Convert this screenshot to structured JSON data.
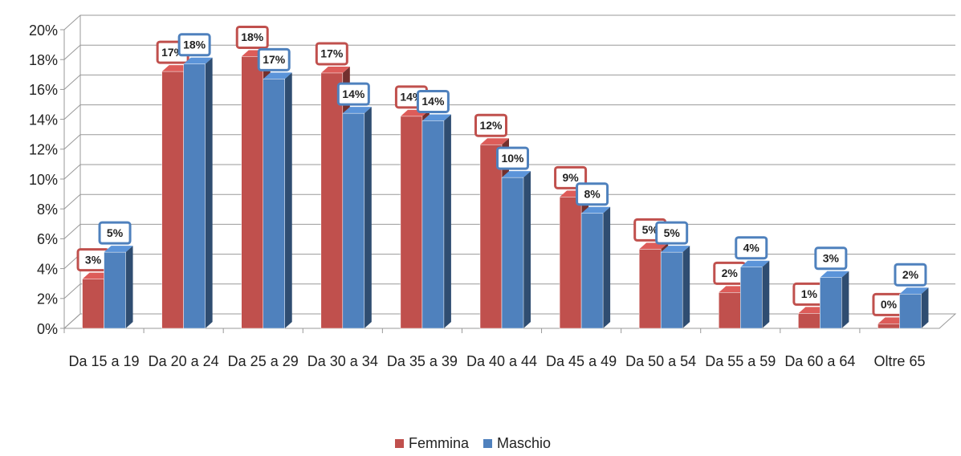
{
  "chart_data": {
    "type": "bar",
    "categories": [
      "Da 15 a 19",
      "Da 20 a 24",
      "Da 25 a 29",
      "Da 30 a 34",
      "Da 35 a 39",
      "Da 40 a 44",
      "Da 45 a 49",
      "Da 50 a 54",
      "Da 55 a 59",
      "Da 60 a 64",
      "Oltre 65"
    ],
    "series": [
      {
        "name": "Femmina",
        "color": "#c0504d",
        "values": [
          3.3,
          17.2,
          18.2,
          17.1,
          14.2,
          12.3,
          8.8,
          5.3,
          2.4,
          1.0,
          0.3
        ],
        "value_labels": [
          "3%",
          "17%",
          "18%",
          "17%",
          "14%",
          "12%",
          "9%",
          "5%",
          "2%",
          "1%",
          "0%"
        ]
      },
      {
        "name": "Maschio",
        "color": "#4f81bd",
        "values": [
          5.1,
          17.7,
          16.7,
          14.4,
          13.9,
          10.1,
          7.7,
          5.1,
          4.1,
          3.4,
          2.3
        ],
        "value_labels": [
          "5%",
          "18%",
          "17%",
          "14%",
          "14%",
          "10%",
          "8%",
          "5%",
          "4%",
          "3%",
          "2%"
        ]
      }
    ],
    "ylim": [
      0,
      20
    ],
    "yticks": [
      {
        "value": 0,
        "label": "0%"
      },
      {
        "value": 2,
        "label": "2%"
      },
      {
        "value": 4,
        "label": "4%"
      },
      {
        "value": 6,
        "label": "6%"
      },
      {
        "value": 8,
        "label": "8%"
      },
      {
        "value": 10,
        "label": "10%"
      },
      {
        "value": 12,
        "label": "12%"
      },
      {
        "value": 14,
        "label": "14%"
      },
      {
        "value": 16,
        "label": "16%"
      },
      {
        "value": 18,
        "label": "18%"
      },
      {
        "value": 20,
        "label": "20%"
      }
    ],
    "grid": true,
    "legend": "bottom"
  }
}
